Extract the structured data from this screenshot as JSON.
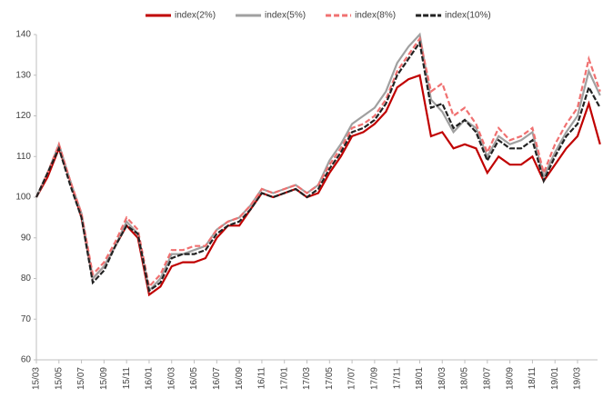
{
  "chart_data": {
    "type": "line",
    "categories": [
      "15/03",
      null,
      "15/05",
      null,
      "15/07",
      null,
      "15/09",
      null,
      "15/11",
      null,
      "16/01",
      null,
      "16/03",
      null,
      "16/05",
      null,
      "16/07",
      null,
      "16/09",
      null,
      "16/11",
      null,
      "17/01",
      null,
      "17/03",
      null,
      "17/05",
      null,
      "17/07",
      null,
      "17/09",
      null,
      "17/11",
      null,
      "18/01",
      null,
      "18/03",
      null,
      "18/05",
      null,
      "18/07",
      null,
      "18/09",
      null,
      "18/11",
      null,
      "19/01",
      null,
      "19/03",
      null,
      null
    ],
    "series": [
      {
        "name": "index(2%)",
        "color": "#c00000",
        "dash": "none",
        "values": [
          100,
          105,
          112,
          104,
          95,
          80,
          83,
          88,
          93,
          90,
          76,
          78,
          83,
          84,
          84,
          85,
          90,
          93,
          93,
          97,
          101,
          100,
          101,
          102,
          100,
          101,
          106,
          110,
          115,
          116,
          118,
          121,
          127,
          129,
          130,
          115,
          116,
          112,
          113,
          112,
          106,
          110,
          108,
          108,
          110,
          104,
          108,
          112,
          115,
          123,
          113
        ]
      },
      {
        "name": "index(5%)",
        "color": "#a0a0a0",
        "dash": "none",
        "values": [
          100,
          106,
          113,
          104,
          96,
          80,
          83,
          88,
          94,
          91,
          77,
          80,
          86,
          86,
          87,
          88,
          92,
          94,
          95,
          98,
          102,
          101,
          102,
          103,
          101,
          103,
          109,
          113,
          118,
          120,
          122,
          126,
          133,
          137,
          140,
          124,
          121,
          116,
          119,
          117,
          110,
          115,
          113,
          114,
          116,
          105,
          111,
          116,
          120,
          131,
          125
        ]
      },
      {
        "name": "index(8%)",
        "color": "#f07070",
        "dash": "6,3",
        "values": [
          100,
          106,
          113,
          104,
          96,
          81,
          84,
          89,
          95,
          92,
          78,
          81,
          87,
          87,
          88,
          88,
          92,
          94,
          95,
          98,
          102,
          101,
          102,
          103,
          101,
          103,
          108,
          112,
          117,
          118,
          120,
          124,
          131,
          135,
          139,
          126,
          128,
          120,
          122,
          118,
          111,
          117,
          114,
          115,
          117,
          106,
          113,
          118,
          122,
          134,
          126
        ]
      },
      {
        "name": "index(10%)",
        "color": "#222222",
        "dash": "6,2",
        "values": [
          100,
          106,
          112,
          103,
          95,
          79,
          82,
          88,
          93,
          91,
          77,
          79,
          85,
          86,
          86,
          87,
          91,
          93,
          94,
          97,
          101,
          100,
          101,
          102,
          100,
          102,
          107,
          111,
          116,
          117,
          119,
          123,
          130,
          134,
          138,
          122,
          123,
          117,
          119,
          116,
          109,
          114,
          112,
          112,
          114,
          104,
          110,
          115,
          118,
          127,
          122
        ]
      }
    ],
    "ylim": [
      60,
      140
    ],
    "yticks": [
      60,
      70,
      80,
      90,
      100,
      110,
      120,
      130,
      140
    ],
    "legend": "top"
  }
}
